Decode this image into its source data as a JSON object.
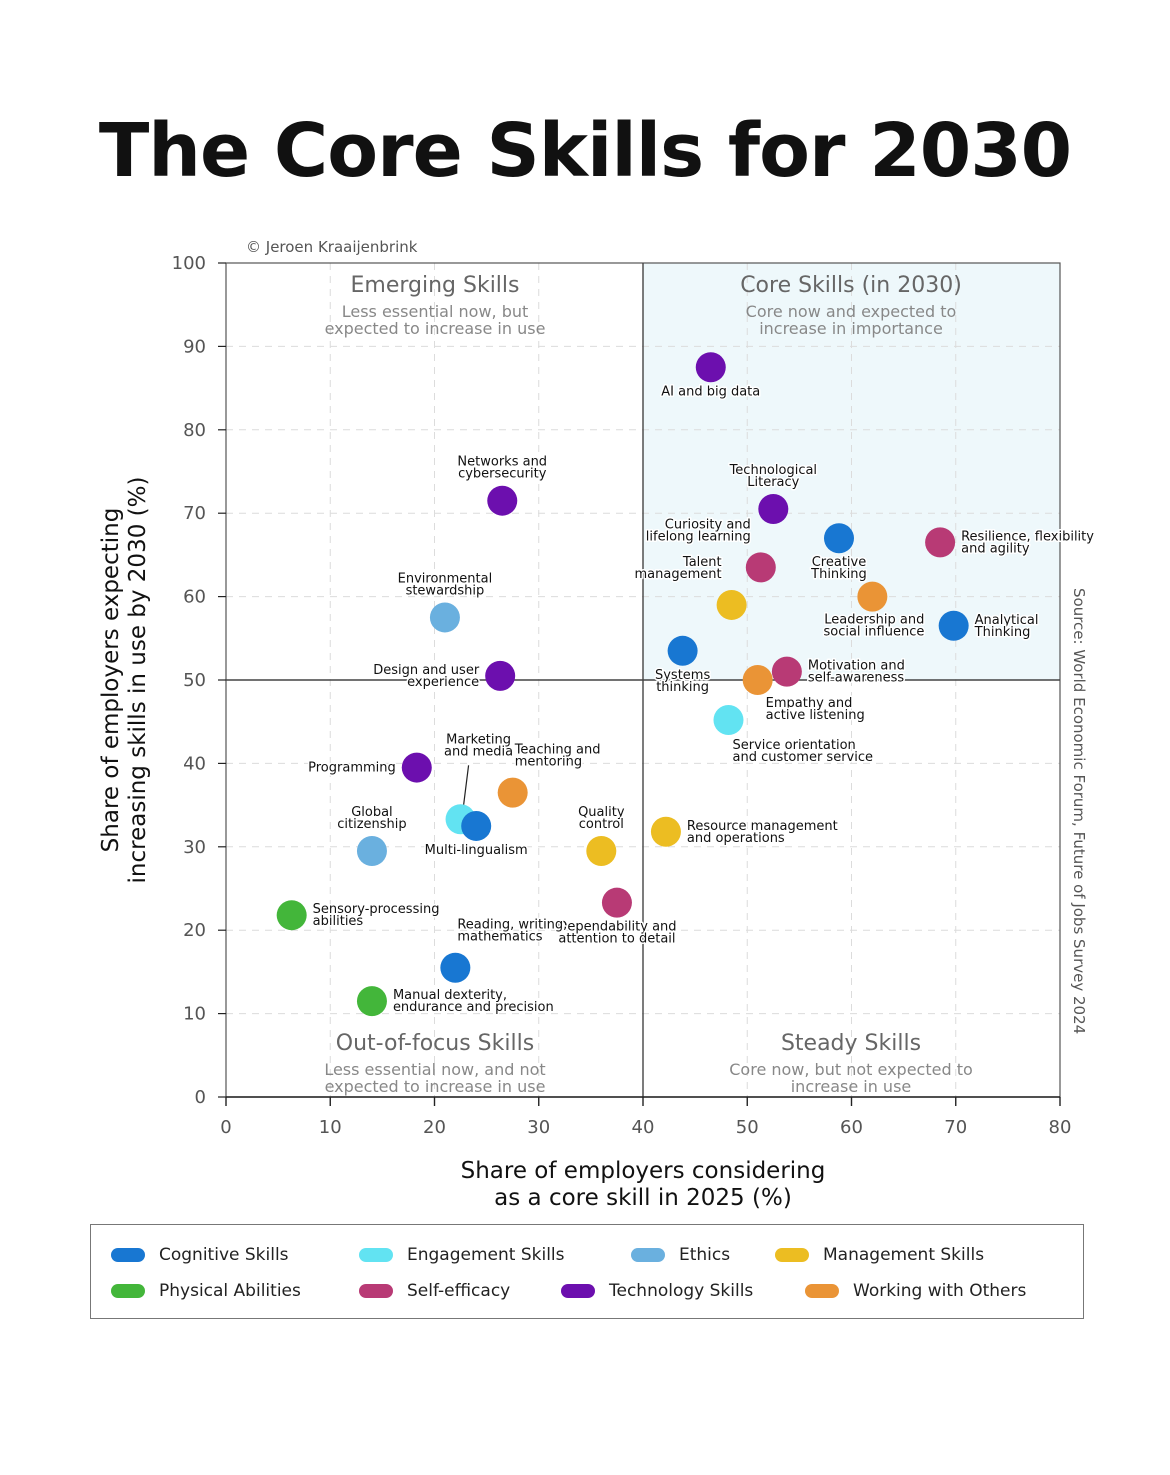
{
  "title": "The Core Skills for 2030",
  "copyright": "© Jeroen Kraaijenbrink",
  "source": "Source: World Economic Forum, Future of Jobs Survey 2024",
  "colors": {
    "Cognitive Skills": "#1877d2",
    "Engagement Skills": "#62e3f2",
    "Ethics": "#6ab0df",
    "Management Skills": "#ecbd22",
    "Physical Abilities": "#43b63a",
    "Self-efficacy": "#b83a75",
    "Technology Skills": "#6c0fae",
    "Working with Others": "#ea9436",
    "core_quadrant_fill": "#eef8fb"
  },
  "legend": [
    {
      "label": "Cognitive Skills"
    },
    {
      "label": "Engagement Skills"
    },
    {
      "label": "Ethics"
    },
    {
      "label": "Management Skills"
    },
    {
      "label": "Physical Abilities"
    },
    {
      "label": "Self-efficacy"
    },
    {
      "label": "Technology Skills"
    },
    {
      "label": "Working with Others"
    }
  ],
  "chart_data": {
    "type": "scatter",
    "xlabel": [
      "Share of employers considering",
      "as a core skill in 2025 (%)"
    ],
    "ylabel": [
      "Share of employers expecting",
      "increasing skills in use by 2030 (%)"
    ],
    "xlim": [
      0,
      80
    ],
    "ylim": [
      0,
      100
    ],
    "xticks": [
      0,
      10,
      20,
      30,
      40,
      50,
      60,
      70,
      80
    ],
    "yticks": [
      0,
      10,
      20,
      30,
      40,
      50,
      60,
      70,
      80,
      90,
      100
    ],
    "grid": true,
    "dividers": {
      "x": 40,
      "y": 50
    },
    "quadrants": [
      {
        "name": "emerging",
        "title": "Emerging Skills",
        "subtitle": [
          "Less essential now, but",
          "expected to increase in use"
        ]
      },
      {
        "name": "core",
        "title": "Core Skills (in 2030)",
        "subtitle": [
          "Core now and expected to",
          "increase in importance"
        ]
      },
      {
        "name": "out-of-focus",
        "title": "Out-of-focus Skills",
        "subtitle": [
          "Less essential now, and not",
          "expected to increase in use"
        ]
      },
      {
        "name": "steady",
        "title": "Steady Skills",
        "subtitle": [
          "Core now, but not expected to",
          "increase in use"
        ]
      }
    ],
    "points": [
      {
        "label": [
          "AI and big data"
        ],
        "x": 46.5,
        "y": 87.5,
        "category": "Technology Skills",
        "anchor": "below"
      },
      {
        "label": [
          "Networks and",
          "cybersecurity"
        ],
        "x": 26.5,
        "y": 71.5,
        "category": "Technology Skills",
        "anchor": "above"
      },
      {
        "label": [
          "Technological",
          "Literacy"
        ],
        "x": 52.5,
        "y": 70.5,
        "category": "Technology Skills",
        "anchor": "above"
      },
      {
        "label": [
          "Creative",
          "Thinking"
        ],
        "x": 58.8,
        "y": 67,
        "category": "Cognitive Skills",
        "anchor": "below"
      },
      {
        "label": [
          "Resilience, flexibility",
          "and agility"
        ],
        "x": 68.5,
        "y": 66.5,
        "category": "Self-efficacy",
        "anchor": "right"
      },
      {
        "label": [
          "Curiosity and",
          "lifelong learning"
        ],
        "x": 51.3,
        "y": 63.5,
        "category": "Self-efficacy",
        "anchor": "upper-left"
      },
      {
        "label": [
          "Talent",
          "management"
        ],
        "x": 48.5,
        "y": 59,
        "category": "Management Skills",
        "anchor": "upper-left"
      },
      {
        "label": [
          "Leadership and",
          "social influence"
        ],
        "x": 62,
        "y": 60,
        "category": "Working with Others",
        "anchor": "lower-left"
      },
      {
        "label": [
          "Analytical",
          "Thinking"
        ],
        "x": 69.8,
        "y": 56.5,
        "category": "Cognitive Skills",
        "anchor": "right"
      },
      {
        "label": [
          "Environmental",
          "stewardship"
        ],
        "x": 21,
        "y": 57.5,
        "category": "Ethics",
        "anchor": "above"
      },
      {
        "label": [
          "Systems",
          "thinking"
        ],
        "x": 43.8,
        "y": 53.5,
        "category": "Cognitive Skills",
        "anchor": "below"
      },
      {
        "label": [
          "Design and user",
          "experience"
        ],
        "x": 26.3,
        "y": 50.5,
        "category": "Technology Skills",
        "anchor": "left"
      },
      {
        "label": [
          "Motivation and",
          "self-awareness"
        ],
        "x": 53.8,
        "y": 51,
        "category": "Self-efficacy",
        "anchor": "right"
      },
      {
        "label": [
          "Empathy and",
          "active listening"
        ],
        "x": 51,
        "y": 50,
        "category": "Working with Others",
        "anchor": "lower-right"
      },
      {
        "label": [
          "Service orientation",
          "and customer service"
        ],
        "x": 48.2,
        "y": 45.2,
        "category": "Engagement Skills",
        "anchor": "below-right"
      },
      {
        "label": [
          "Programming"
        ],
        "x": 18.3,
        "y": 39.5,
        "category": "Technology Skills",
        "anchor": "left"
      },
      {
        "label": [
          "Teaching and",
          "mentoring"
        ],
        "x": 27.5,
        "y": 36.5,
        "category": "Working with Others",
        "anchor": "upper-right"
      },
      {
        "label": [
          "Marketing",
          "and media"
        ],
        "x": 22.5,
        "y": 33.3,
        "category": "Engagement Skills",
        "anchor": "leader"
      },
      {
        "label": [
          "Multi-lingualism"
        ],
        "x": 24,
        "y": 32.5,
        "category": "Cognitive Skills",
        "anchor": "below"
      },
      {
        "label": [
          "Global",
          "citizenship"
        ],
        "x": 14,
        "y": 29.5,
        "category": "Ethics",
        "anchor": "above"
      },
      {
        "label": [
          "Quality",
          "control"
        ],
        "x": 36,
        "y": 29.5,
        "category": "Management Skills",
        "anchor": "above"
      },
      {
        "label": [
          "Resource management",
          "and operations"
        ],
        "x": 42.2,
        "y": 31.8,
        "category": "Management Skills",
        "anchor": "right"
      },
      {
        "label": [
          "Dependability and",
          "attention to detail"
        ],
        "x": 37.5,
        "y": 23.3,
        "category": "Self-efficacy",
        "anchor": "below"
      },
      {
        "label": [
          "Sensory-processing",
          "abilities"
        ],
        "x": 6.3,
        "y": 21.8,
        "category": "Physical Abilities",
        "anchor": "right"
      },
      {
        "label": [
          "Reading, writing,",
          "mathematics"
        ],
        "x": 22,
        "y": 15.5,
        "category": "Cognitive Skills",
        "anchor": "upper-right"
      },
      {
        "label": [
          "Manual dexterity,",
          "endurance and precision"
        ],
        "x": 14,
        "y": 11.5,
        "category": "Physical Abilities",
        "anchor": "right"
      }
    ]
  }
}
